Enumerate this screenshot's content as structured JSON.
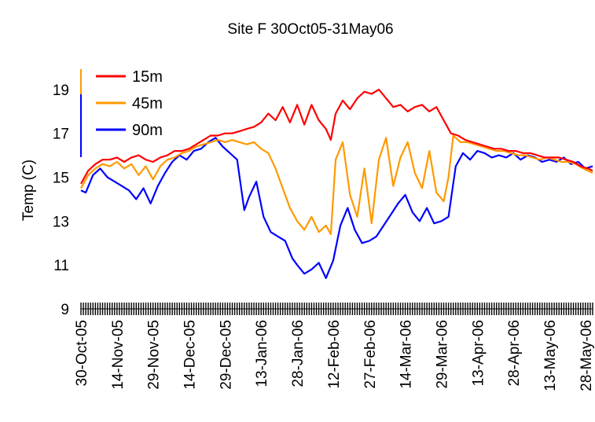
{
  "chart_data": {
    "type": "line",
    "title": "Site F 30Oct05-31May06",
    "xlabel": "",
    "ylabel": "Temp (C)",
    "ylim": [
      9,
      20
    ],
    "y_ticks": [
      9,
      11,
      13,
      15,
      17,
      19
    ],
    "x_range": [
      "2005-10-30",
      "2006-05-31"
    ],
    "x_tick_labels": [
      "30-Oct-05",
      "14-Nov-05",
      "29-Nov-05",
      "14-Dec-05",
      "29-Dec-05",
      "13-Jan-06",
      "28-Jan-06",
      "12-Feb-06",
      "27-Feb-06",
      "14-Mar-06",
      "29-Mar-06",
      "13-Apr-06",
      "28-Apr-06",
      "13-May-06",
      "28-May-06"
    ],
    "x_tick_dates": [
      "2005-10-30",
      "2005-11-14",
      "2005-11-29",
      "2005-12-14",
      "2005-12-29",
      "2006-01-13",
      "2006-01-28",
      "2006-02-12",
      "2006-02-27",
      "2006-03-14",
      "2006-03-29",
      "2006-04-13",
      "2006-04-28",
      "2006-05-13",
      "2006-05-28"
    ],
    "grid": false,
    "legend": "top-left",
    "series": [
      {
        "name": "15m",
        "color": "#ff0000",
        "points": [
          [
            "2005-10-30",
            14.7
          ],
          [
            "2005-11-02",
            15.3
          ],
          [
            "2005-11-05",
            15.6
          ],
          [
            "2005-11-08",
            15.8
          ],
          [
            "2005-11-11",
            15.8
          ],
          [
            "2005-11-14",
            15.9
          ],
          [
            "2005-11-17",
            15.7
          ],
          [
            "2005-11-20",
            15.9
          ],
          [
            "2005-11-23",
            16.0
          ],
          [
            "2005-11-26",
            15.8
          ],
          [
            "2005-11-29",
            15.7
          ],
          [
            "2005-12-02",
            15.9
          ],
          [
            "2005-12-05",
            16.0
          ],
          [
            "2005-12-08",
            16.2
          ],
          [
            "2005-12-11",
            16.2
          ],
          [
            "2005-12-14",
            16.3
          ],
          [
            "2005-12-17",
            16.5
          ],
          [
            "2005-12-20",
            16.7
          ],
          [
            "2005-12-23",
            16.9
          ],
          [
            "2005-12-26",
            16.9
          ],
          [
            "2005-12-29",
            17.0
          ],
          [
            "2006-01-01",
            17.0
          ],
          [
            "2006-01-04",
            17.1
          ],
          [
            "2006-01-07",
            17.2
          ],
          [
            "2006-01-10",
            17.3
          ],
          [
            "2006-01-13",
            17.5
          ],
          [
            "2006-01-16",
            17.9
          ],
          [
            "2006-01-19",
            17.6
          ],
          [
            "2006-01-22",
            18.2
          ],
          [
            "2006-01-25",
            17.5
          ],
          [
            "2006-01-28",
            18.3
          ],
          [
            "2006-01-31",
            17.4
          ],
          [
            "2006-02-03",
            18.3
          ],
          [
            "2006-02-06",
            17.6
          ],
          [
            "2006-02-09",
            17.2
          ],
          [
            "2006-02-11",
            16.7
          ],
          [
            "2006-02-13",
            17.9
          ],
          [
            "2006-02-16",
            18.5
          ],
          [
            "2006-02-19",
            18.1
          ],
          [
            "2006-02-22",
            18.6
          ],
          [
            "2006-02-25",
            18.9
          ],
          [
            "2006-02-28",
            18.8
          ],
          [
            "2006-03-03",
            19.0
          ],
          [
            "2006-03-06",
            18.6
          ],
          [
            "2006-03-09",
            18.2
          ],
          [
            "2006-03-12",
            18.3
          ],
          [
            "2006-03-15",
            18.0
          ],
          [
            "2006-03-18",
            18.2
          ],
          [
            "2006-03-21",
            18.3
          ],
          [
            "2006-03-24",
            18.0
          ],
          [
            "2006-03-27",
            18.2
          ],
          [
            "2006-03-30",
            17.6
          ],
          [
            "2006-04-02",
            17.0
          ],
          [
            "2006-04-05",
            16.9
          ],
          [
            "2006-04-08",
            16.7
          ],
          [
            "2006-04-11",
            16.6
          ],
          [
            "2006-04-14",
            16.5
          ],
          [
            "2006-04-17",
            16.4
          ],
          [
            "2006-04-20",
            16.3
          ],
          [
            "2006-04-23",
            16.3
          ],
          [
            "2006-04-26",
            16.2
          ],
          [
            "2006-04-29",
            16.2
          ],
          [
            "2006-05-02",
            16.1
          ],
          [
            "2006-05-05",
            16.1
          ],
          [
            "2006-05-08",
            16.0
          ],
          [
            "2006-05-11",
            15.9
          ],
          [
            "2006-05-14",
            15.9
          ],
          [
            "2006-05-17",
            15.9
          ],
          [
            "2006-05-20",
            15.8
          ],
          [
            "2006-05-23",
            15.7
          ],
          [
            "2006-05-26",
            15.5
          ],
          [
            "2006-05-29",
            15.4
          ],
          [
            "2006-05-31",
            15.3
          ]
        ]
      },
      {
        "name": "45m",
        "color": "#ff9900",
        "points": [
          [
            "2005-10-30",
            14.5
          ],
          [
            "2005-11-02",
            15.1
          ],
          [
            "2005-11-05",
            15.4
          ],
          [
            "2005-11-08",
            15.6
          ],
          [
            "2005-11-11",
            15.5
          ],
          [
            "2005-11-14",
            15.7
          ],
          [
            "2005-11-17",
            15.4
          ],
          [
            "2005-11-20",
            15.6
          ],
          [
            "2005-11-23",
            15.1
          ],
          [
            "2005-11-26",
            15.5
          ],
          [
            "2005-11-29",
            14.9
          ],
          [
            "2005-12-02",
            15.5
          ],
          [
            "2005-12-05",
            15.8
          ],
          [
            "2005-12-08",
            15.9
          ],
          [
            "2005-12-11",
            16.1
          ],
          [
            "2005-12-14",
            16.2
          ],
          [
            "2005-12-17",
            16.4
          ],
          [
            "2005-12-20",
            16.5
          ],
          [
            "2005-12-23",
            16.6
          ],
          [
            "2005-12-26",
            16.7
          ],
          [
            "2005-12-29",
            16.6
          ],
          [
            "2006-01-01",
            16.7
          ],
          [
            "2006-01-04",
            16.6
          ],
          [
            "2006-01-07",
            16.5
          ],
          [
            "2006-01-10",
            16.6
          ],
          [
            "2006-01-13",
            16.3
          ],
          [
            "2006-01-16",
            16.1
          ],
          [
            "2006-01-19",
            15.4
          ],
          [
            "2006-01-22",
            14.5
          ],
          [
            "2006-01-25",
            13.6
          ],
          [
            "2006-01-28",
            13.0
          ],
          [
            "2006-01-31",
            12.6
          ],
          [
            "2006-02-03",
            13.2
          ],
          [
            "2006-02-06",
            12.5
          ],
          [
            "2006-02-09",
            12.8
          ],
          [
            "2006-02-11",
            12.4
          ],
          [
            "2006-02-13",
            15.8
          ],
          [
            "2006-02-16",
            16.6
          ],
          [
            "2006-02-19",
            14.2
          ],
          [
            "2006-02-22",
            13.2
          ],
          [
            "2006-02-25",
            15.4
          ],
          [
            "2006-02-28",
            12.9
          ],
          [
            "2006-03-03",
            15.8
          ],
          [
            "2006-03-06",
            16.8
          ],
          [
            "2006-03-09",
            14.6
          ],
          [
            "2006-03-12",
            15.9
          ],
          [
            "2006-03-15",
            16.6
          ],
          [
            "2006-03-18",
            15.2
          ],
          [
            "2006-03-21",
            14.5
          ],
          [
            "2006-03-24",
            16.2
          ],
          [
            "2006-03-27",
            14.3
          ],
          [
            "2006-03-30",
            13.9
          ],
          [
            "2006-04-01",
            15.0
          ],
          [
            "2006-04-03",
            16.9
          ],
          [
            "2006-04-06",
            16.6
          ],
          [
            "2006-04-09",
            16.6
          ],
          [
            "2006-04-12",
            16.5
          ],
          [
            "2006-04-15",
            16.4
          ],
          [
            "2006-04-18",
            16.3
          ],
          [
            "2006-04-21",
            16.2
          ],
          [
            "2006-04-24",
            16.2
          ],
          [
            "2006-04-27",
            16.1
          ],
          [
            "2006-04-30",
            16.0
          ],
          [
            "2006-05-03",
            16.0
          ],
          [
            "2006-05-06",
            15.9
          ],
          [
            "2006-05-09",
            15.8
          ],
          [
            "2006-05-12",
            15.9
          ],
          [
            "2006-05-15",
            15.8
          ],
          [
            "2006-05-18",
            15.7
          ],
          [
            "2006-05-21",
            15.7
          ],
          [
            "2006-05-24",
            15.6
          ],
          [
            "2006-05-27",
            15.4
          ],
          [
            "2006-05-29",
            15.3
          ],
          [
            "2006-05-31",
            15.2
          ]
        ]
      },
      {
        "name": "90m",
        "color": "#0000ff",
        "points": [
          [
            "2005-10-30",
            14.4
          ],
          [
            "2005-11-01",
            14.3
          ],
          [
            "2005-11-04",
            15.1
          ],
          [
            "2005-11-07",
            15.4
          ],
          [
            "2005-11-10",
            15.0
          ],
          [
            "2005-11-13",
            14.8
          ],
          [
            "2005-11-16",
            14.6
          ],
          [
            "2005-11-19",
            14.4
          ],
          [
            "2005-11-22",
            14.0
          ],
          [
            "2005-11-25",
            14.5
          ],
          [
            "2005-11-28",
            13.8
          ],
          [
            "2005-12-01",
            14.6
          ],
          [
            "2005-12-04",
            15.2
          ],
          [
            "2005-12-07",
            15.7
          ],
          [
            "2005-12-10",
            16.0
          ],
          [
            "2005-12-13",
            15.8
          ],
          [
            "2005-12-16",
            16.2
          ],
          [
            "2005-12-19",
            16.3
          ],
          [
            "2005-12-22",
            16.6
          ],
          [
            "2005-12-25",
            16.8
          ],
          [
            "2005-12-28",
            16.4
          ],
          [
            "2005-12-31",
            16.1
          ],
          [
            "2006-01-03",
            15.8
          ],
          [
            "2006-01-06",
            13.5
          ],
          [
            "2006-01-08",
            14.1
          ],
          [
            "2006-01-11",
            14.8
          ],
          [
            "2006-01-14",
            13.2
          ],
          [
            "2006-01-17",
            12.5
          ],
          [
            "2006-01-20",
            12.3
          ],
          [
            "2006-01-23",
            12.1
          ],
          [
            "2006-01-26",
            11.3
          ],
          [
            "2006-01-28",
            11.0
          ],
          [
            "2006-01-31",
            10.6
          ],
          [
            "2006-02-03",
            10.8
          ],
          [
            "2006-02-06",
            11.1
          ],
          [
            "2006-02-09",
            10.4
          ],
          [
            "2006-02-12",
            11.2
          ],
          [
            "2006-02-15",
            12.8
          ],
          [
            "2006-02-18",
            13.6
          ],
          [
            "2006-02-21",
            12.6
          ],
          [
            "2006-02-24",
            12.0
          ],
          [
            "2006-02-27",
            12.1
          ],
          [
            "2006-03-02",
            12.3
          ],
          [
            "2006-03-05",
            12.8
          ],
          [
            "2006-03-08",
            13.3
          ],
          [
            "2006-03-11",
            13.8
          ],
          [
            "2006-03-14",
            14.2
          ],
          [
            "2006-03-17",
            13.4
          ],
          [
            "2006-03-20",
            13.0
          ],
          [
            "2006-03-23",
            13.6
          ],
          [
            "2006-03-26",
            12.9
          ],
          [
            "2006-03-29",
            13.0
          ],
          [
            "2006-04-01",
            13.2
          ],
          [
            "2006-04-04",
            15.5
          ],
          [
            "2006-04-07",
            16.1
          ],
          [
            "2006-04-10",
            15.8
          ],
          [
            "2006-04-13",
            16.2
          ],
          [
            "2006-04-16",
            16.1
          ],
          [
            "2006-04-19",
            15.9
          ],
          [
            "2006-04-22",
            16.0
          ],
          [
            "2006-04-25",
            15.9
          ],
          [
            "2006-04-28",
            16.1
          ],
          [
            "2006-05-01",
            15.8
          ],
          [
            "2006-05-04",
            16.0
          ],
          [
            "2006-05-07",
            15.9
          ],
          [
            "2006-05-10",
            15.7
          ],
          [
            "2006-05-13",
            15.8
          ],
          [
            "2006-05-16",
            15.7
          ],
          [
            "2006-05-19",
            15.9
          ],
          [
            "2006-05-22",
            15.6
          ],
          [
            "2006-05-25",
            15.7
          ],
          [
            "2006-05-28",
            15.4
          ],
          [
            "2006-05-31",
            15.5
          ]
        ]
      }
    ]
  }
}
